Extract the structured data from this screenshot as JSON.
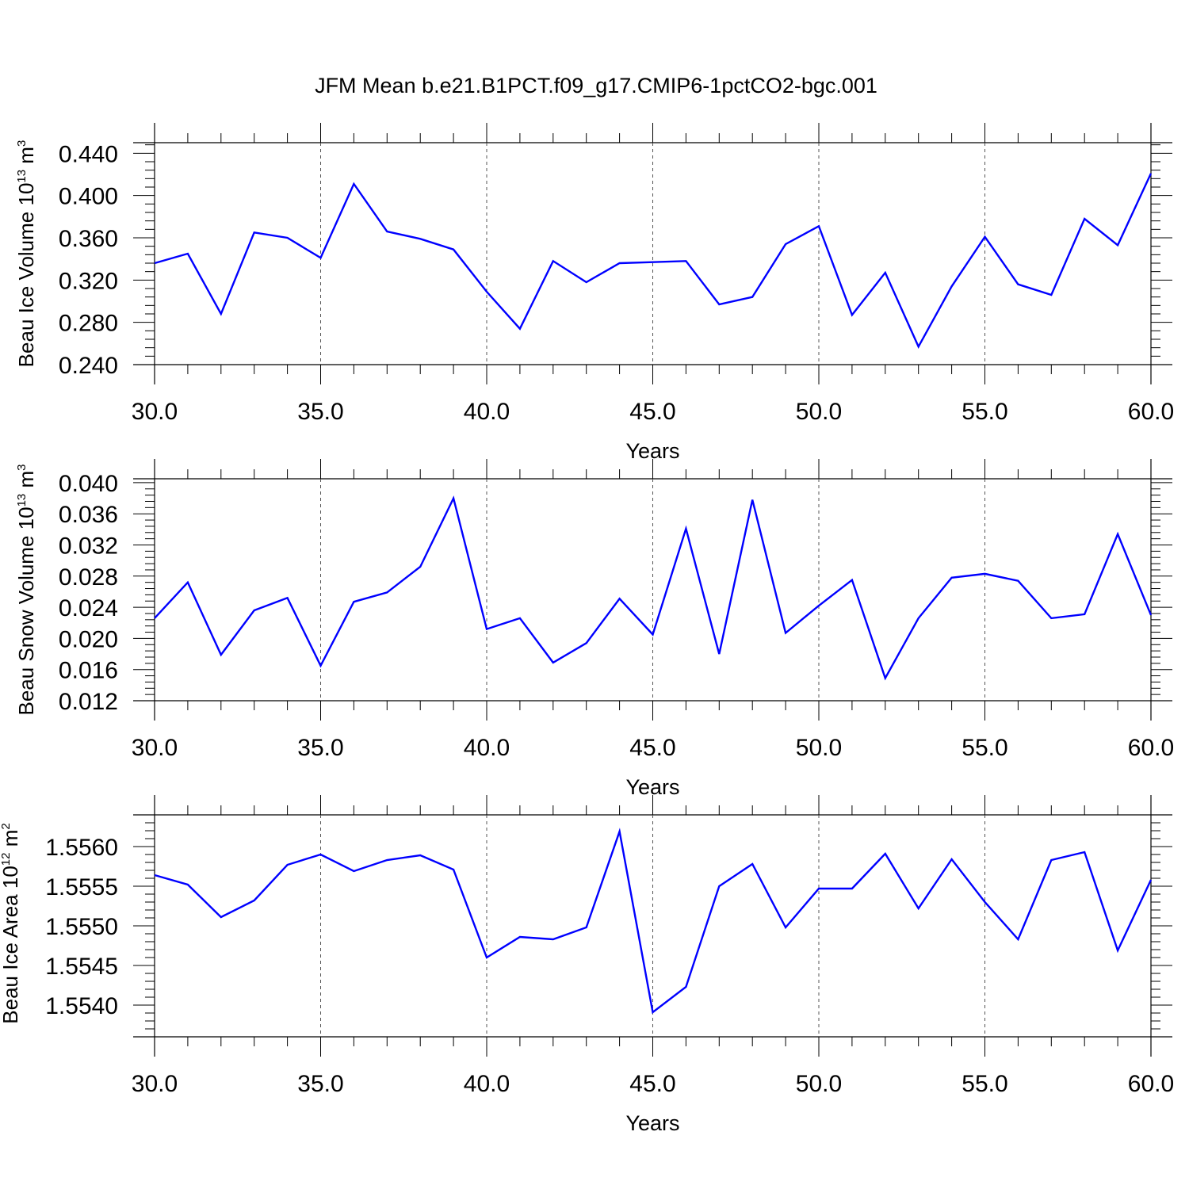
{
  "title": "JFM Mean b.e21.B1PCT.f09_g17.CMIP6-1pctCO2-bgc.001",
  "colors": {
    "line": "#0000ff",
    "axis": "#000000",
    "grid": "#555555"
  },
  "chart_data": [
    {
      "type": "line",
      "ylabel": "Beau Ice Volume 10",
      "ylabel_exp": "13",
      "ylabel_unit": " m",
      "ylabel_unit_exp": "3",
      "xlabel": "Years",
      "xlim": [
        30,
        60
      ],
      "ylim": [
        0.24,
        0.45
      ],
      "x_ticks": [
        "30.0",
        "35.0",
        "40.0",
        "45.0",
        "50.0",
        "55.0",
        "60.0"
      ],
      "y_ticks": [
        "0.240",
        "0.280",
        "0.320",
        "0.360",
        "0.400",
        "0.440"
      ],
      "x": [
        30,
        31,
        32,
        33,
        34,
        35,
        36,
        37,
        38,
        39,
        40,
        41,
        42,
        43,
        44,
        45,
        46,
        47,
        48,
        49,
        50,
        51,
        52,
        53,
        54,
        55,
        56,
        57,
        58,
        59,
        60
      ],
      "series": [
        {
          "values": [
            0.336,
            0.345,
            0.288,
            0.365,
            0.36,
            0.341,
            0.411,
            0.366,
            0.359,
            0.349,
            0.309,
            0.274,
            0.338,
            0.318,
            0.336,
            0.337,
            0.338,
            0.297,
            0.304,
            0.354,
            0.371,
            0.287,
            0.327,
            0.257,
            0.314,
            0.361,
            0.316,
            0.306,
            0.378,
            0.353,
            0.421
          ]
        }
      ]
    },
    {
      "type": "line",
      "ylabel": "Beau Snow Volume 10",
      "ylabel_exp": "13",
      "ylabel_unit": " m",
      "ylabel_unit_exp": "3",
      "xlabel": "Years",
      "xlim": [
        30,
        60
      ],
      "ylim": [
        0.012,
        0.0405
      ],
      "x_ticks": [
        "30.0",
        "35.0",
        "40.0",
        "45.0",
        "50.0",
        "55.0",
        "60.0"
      ],
      "y_ticks": [
        "0.012",
        "0.016",
        "0.020",
        "0.024",
        "0.028",
        "0.032",
        "0.036",
        "0.040"
      ],
      "x": [
        30,
        31,
        32,
        33,
        34,
        35,
        36,
        37,
        38,
        39,
        40,
        41,
        42,
        43,
        44,
        45,
        46,
        47,
        48,
        49,
        50,
        51,
        52,
        53,
        54,
        55,
        56,
        57,
        58,
        59,
        60
      ],
      "series": [
        {
          "values": [
            0.0226,
            0.0272,
            0.0179,
            0.0236,
            0.0252,
            0.0165,
            0.0247,
            0.0259,
            0.0292,
            0.038,
            0.0212,
            0.0226,
            0.0169,
            0.0194,
            0.0251,
            0.0205,
            0.0341,
            0.018,
            0.0378,
            0.0207,
            0.0242,
            0.0275,
            0.0149,
            0.0226,
            0.0278,
            0.0283,
            0.0274,
            0.0226,
            0.0231,
            0.0334,
            0.023
          ]
        }
      ]
    },
    {
      "type": "line",
      "ylabel": "Beau Ice Area 10",
      "ylabel_exp": "12",
      "ylabel_unit": " m",
      "ylabel_unit_exp": "2",
      "xlabel": "Years",
      "xlim": [
        30,
        60
      ],
      "ylim": [
        1.5536,
        1.5564
      ],
      "x_ticks": [
        "30.0",
        "35.0",
        "40.0",
        "45.0",
        "50.0",
        "55.0",
        "60.0"
      ],
      "y_ticks": [
        "1.5540",
        "1.5545",
        "1.5550",
        "1.5555",
        "1.5560"
      ],
      "x": [
        30,
        31,
        32,
        33,
        34,
        35,
        36,
        37,
        38,
        39,
        40,
        41,
        42,
        43,
        44,
        45,
        46,
        47,
        48,
        49,
        50,
        51,
        52,
        53,
        54,
        55,
        56,
        57,
        58,
        59,
        60
      ],
      "series": [
        {
          "values": [
            1.55564,
            1.55552,
            1.55511,
            1.55532,
            1.55577,
            1.5559,
            1.55569,
            1.55583,
            1.55589,
            1.55571,
            1.5546,
            1.55486,
            1.55483,
            1.55498,
            1.55619,
            1.55391,
            1.55423,
            1.5555,
            1.55578,
            1.55498,
            1.55547,
            1.55547,
            1.55591,
            1.55522,
            1.55584,
            1.5553,
            1.55483,
            1.55583,
            1.55593,
            1.55469,
            1.55558
          ]
        }
      ]
    }
  ]
}
